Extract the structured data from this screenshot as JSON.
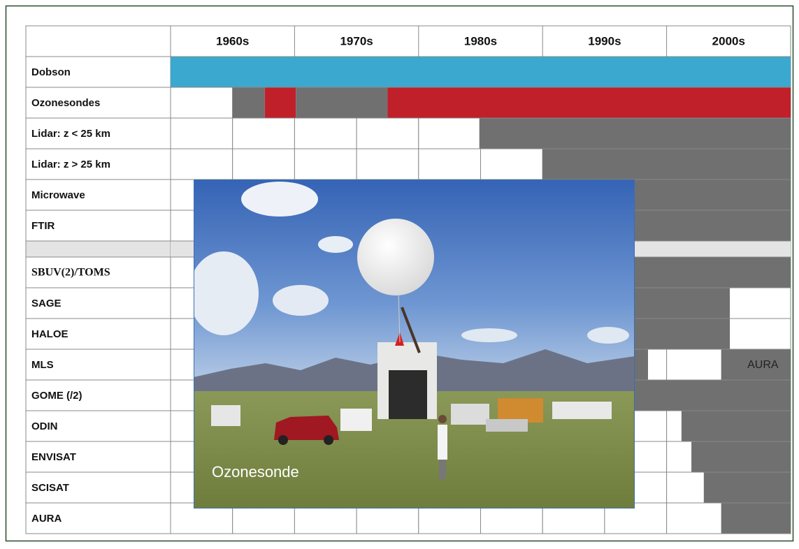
{
  "timeline": {
    "columns": [
      "1960s",
      "1970s",
      "1980s",
      "1990s",
      "2000s"
    ],
    "xlim": [
      1960,
      2010
    ],
    "rows": [
      {
        "label": "Dobson",
        "spans": [
          {
            "start": 1960,
            "end": 2010,
            "color": "#3ba8cf"
          }
        ]
      },
      {
        "label": "Ozonesondes",
        "spans": [
          {
            "start": 1965,
            "end": 1967.6,
            "color": "#707070"
          },
          {
            "start": 1967.6,
            "end": 1970.1,
            "color": "#c0202a"
          },
          {
            "start": 1970.1,
            "end": 1977.5,
            "color": "#707070"
          },
          {
            "start": 1977.5,
            "end": 2010,
            "color": "#c0202a"
          }
        ]
      },
      {
        "label": "Lidar: z < 25 km",
        "spans": [
          {
            "start": 1984.9,
            "end": 2010,
            "color": "#707070"
          }
        ]
      },
      {
        "label": "Lidar: z > 25 km",
        "spans": [
          {
            "start": 1990,
            "end": 2010,
            "color": "#707070"
          }
        ]
      },
      {
        "label": "Microwave",
        "spans": [
          {
            "start": 1990,
            "end": 2010,
            "color": "#707070"
          }
        ]
      },
      {
        "label": "FTIR",
        "spans": [
          {
            "start": 1990,
            "end": 2010,
            "color": "#707070"
          }
        ]
      },
      {
        "spans": [
          {
            "start": 1960,
            "end": 2010,
            "color": "#e4e4e4"
          }
        ]
      },
      {
        "label": "SBUV(2)/TOMS",
        "serif": true,
        "spans": [
          {
            "start": 1978,
            "end": 2010,
            "color": "#707070"
          }
        ]
      },
      {
        "label": "SAGE",
        "spans": [
          {
            "start": 1979,
            "end": 2005.1,
            "color": "#707070"
          }
        ]
      },
      {
        "label": "HALOE",
        "spans": [
          {
            "start": 1991,
            "end": 2005.1,
            "color": "#707070"
          }
        ]
      },
      {
        "label": "MLS",
        "spans": [
          {
            "start": 1991,
            "end": 1998.5,
            "color": "#707070"
          },
          {
            "start": 2004.4,
            "end": 2010,
            "color": "#707070",
            "label": "AURA"
          }
        ]
      },
      {
        "label": "GOME (/2)",
        "spans": [
          {
            "start": 1995,
            "end": 2010,
            "color": "#707070"
          }
        ]
      },
      {
        "label": "ODIN",
        "spans": [
          {
            "start": 2001.2,
            "end": 2010,
            "color": "#707070"
          }
        ]
      },
      {
        "label": "ENVISAT",
        "spans": [
          {
            "start": 2002,
            "end": 2010,
            "color": "#707070"
          }
        ]
      },
      {
        "label": "SCISAT",
        "spans": [
          {
            "start": 2003,
            "end": 2010,
            "color": "#707070"
          }
        ]
      },
      {
        "label": "AURA",
        "spans": [
          {
            "start": 2004.4,
            "end": 2010,
            "color": "#707070"
          }
        ]
      }
    ]
  },
  "photo": {
    "caption": "Ozonesonde"
  }
}
